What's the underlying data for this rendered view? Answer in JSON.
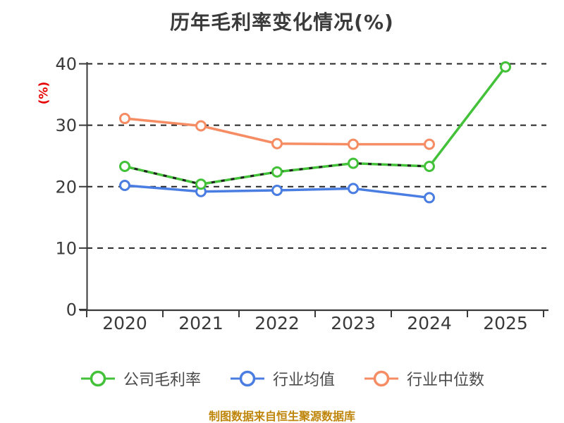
{
  "chart_data": {
    "type": "line",
    "title": "历年毛利率变化情况(%)",
    "ylabel": "(%)",
    "xlabel": "",
    "categories": [
      "2020",
      "2021",
      "2022",
      "2023",
      "2024",
      "2025"
    ],
    "series": [
      {
        "key": "company-gross-margin",
        "name": "公司毛利率",
        "color": "#42c139",
        "marker": "hollow-circle",
        "line_style": "solid-with-dark-dash-overlay-2020-2024",
        "values": [
          23.3,
          20.4,
          22.4,
          23.8,
          23.3,
          39.5
        ]
      },
      {
        "key": "industry-average",
        "name": "行业均值",
        "color": "#4a7de2",
        "marker": "hollow-circle",
        "line_style": "solid",
        "values": [
          20.2,
          19.2,
          19.4,
          19.7,
          18.2,
          null
        ]
      },
      {
        "key": "industry-median",
        "name": "行业中位数",
        "color": "#f68c63",
        "marker": "hollow-circle",
        "line_style": "solid",
        "values": [
          31.1,
          29.9,
          27.0,
          26.9,
          26.9,
          null
        ]
      }
    ],
    "ylim": [
      0,
      40
    ],
    "yticks": [
      0,
      10,
      20,
      30,
      40
    ],
    "grid": "horizontal-dashed",
    "legend_position": "bottom"
  },
  "caption": "制图数据来自恒生聚源数据库",
  "colors": {
    "background": "#ffffff",
    "title_text": "#3a3a3a",
    "axis": "#3a3a3a",
    "tick_label": "#3a3a3a",
    "gridline": "#262626",
    "ylabel_red": "#e60000",
    "legend_text": "#4a4a4a",
    "caption_orange": "#bf860b",
    "overlay_dash": "#222222",
    "marker_fill": "#ffffff"
  }
}
